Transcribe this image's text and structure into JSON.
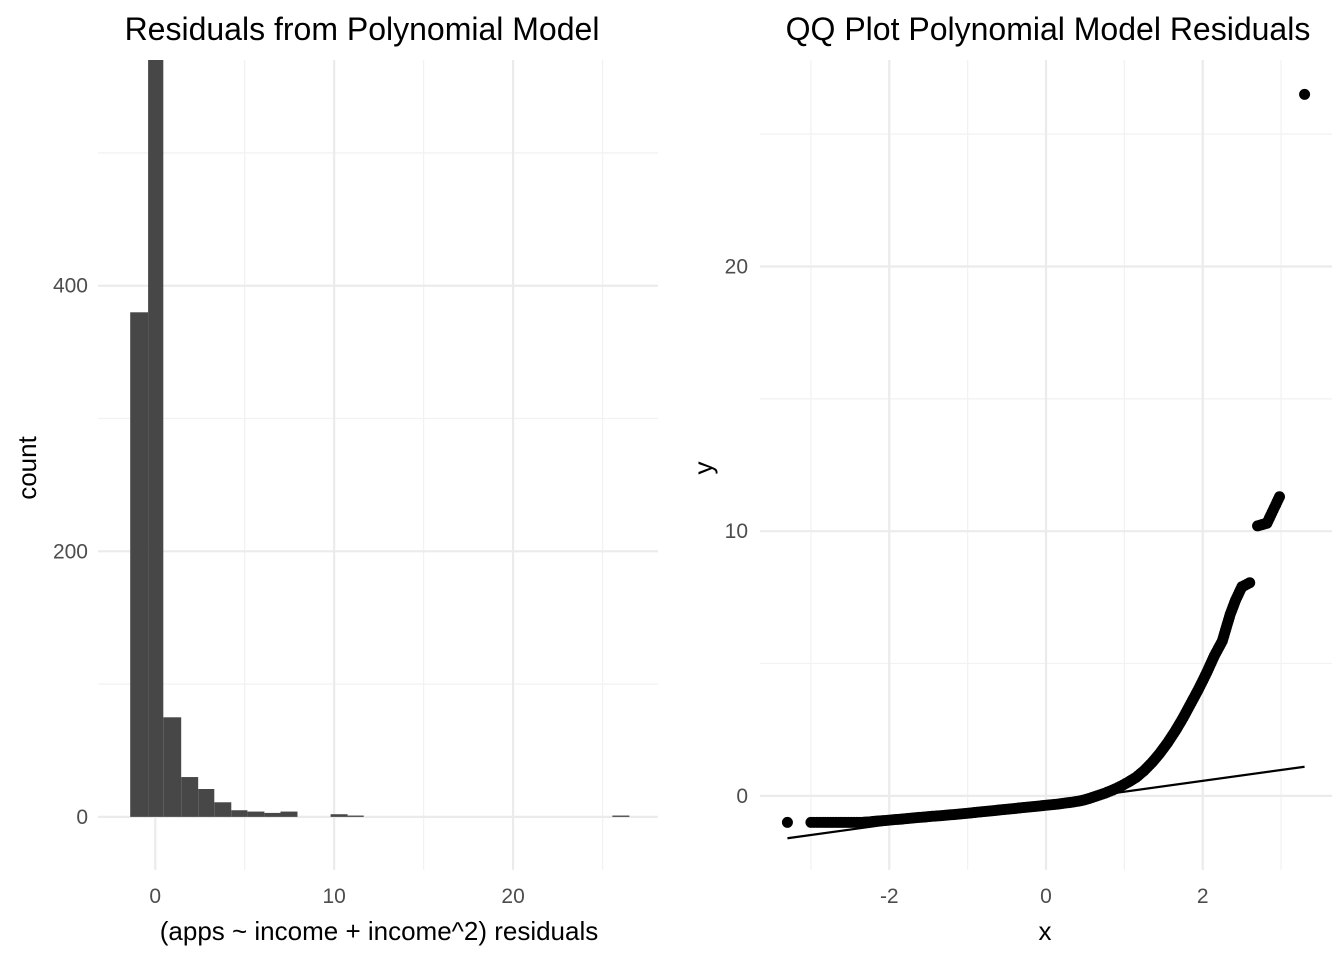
{
  "chart_data": [
    {
      "type": "bar",
      "title": "Residuals from Polynomial Model",
      "xlabel": "(apps ~ income + income^2) residuals",
      "ylabel": "count",
      "xlim": [
        -3.2,
        28.1
      ],
      "ylim": [
        -40,
        570
      ],
      "x_ticks": [
        "0",
        "10",
        "20"
      ],
      "x_tick_values": [
        0,
        10,
        20
      ],
      "y_ticks": [
        "0",
        "200",
        "400"
      ],
      "y_tick_values": [
        0,
        200,
        400
      ],
      "bar_color": "#474747",
      "bins": [
        {
          "x0": -1.4,
          "x1": -0.4,
          "count": 380
        },
        {
          "x0": -0.4,
          "x1": 0.45,
          "count": 570
        },
        {
          "x0": 0.45,
          "x1": 1.45,
          "count": 75
        },
        {
          "x0": 1.45,
          "x1": 2.4,
          "count": 30
        },
        {
          "x0": 2.4,
          "x1": 3.3,
          "count": 21
        },
        {
          "x0": 3.3,
          "x1": 4.25,
          "count": 11
        },
        {
          "x0": 4.25,
          "x1": 5.15,
          "count": 5
        },
        {
          "x0": 5.15,
          "x1": 6.1,
          "count": 4
        },
        {
          "x0": 6.1,
          "x1": 7.0,
          "count": 3
        },
        {
          "x0": 7.0,
          "x1": 7.95,
          "count": 4
        },
        {
          "x0": 7.95,
          "x1": 8.85,
          "count": 0
        },
        {
          "x0": 8.85,
          "x1": 9.8,
          "count": 0
        },
        {
          "x0": 9.8,
          "x1": 10.75,
          "count": 2
        },
        {
          "x0": 10.75,
          "x1": 11.65,
          "count": 1
        },
        {
          "x0": 11.65,
          "x1": 12.6,
          "count": 0
        },
        {
          "x0": 25.55,
          "x1": 26.5,
          "count": 1
        }
      ]
    },
    {
      "type": "scatter",
      "title": "QQ Plot Polynomial Model Residuals",
      "xlabel": "x",
      "ylabel": "y",
      "xlim": [
        -3.65,
        3.65
      ],
      "ylim": [
        -2.8,
        27.8
      ],
      "x_ticks": [
        "-2",
        "0",
        "2"
      ],
      "x_tick_values": [
        -2,
        0,
        2
      ],
      "y_ticks": [
        "0",
        "10",
        "20"
      ],
      "y_tick_values": [
        0,
        10,
        20
      ],
      "point_color": "#000000",
      "line_color": "#000000",
      "qq_line": [
        [
          -3.3,
          -1.6
        ],
        [
          3.3,
          1.1
        ]
      ],
      "points": [
        [
          -3.3,
          -1.0
        ],
        [
          -3.0,
          -1.0
        ],
        [
          -2.85,
          -1.0
        ],
        [
          -2.75,
          -1.0
        ],
        [
          -2.65,
          -1.0
        ],
        [
          -2.55,
          -1.0
        ],
        [
          -2.45,
          -1.0
        ],
        [
          -2.35,
          -1.0
        ],
        [
          -2.25,
          -0.98
        ],
        [
          -2.15,
          -0.95
        ],
        [
          -2.05,
          -0.93
        ],
        [
          -1.95,
          -0.9
        ],
        [
          -1.85,
          -0.88
        ],
        [
          -1.75,
          -0.85
        ],
        [
          -1.65,
          -0.82
        ],
        [
          -1.55,
          -0.8
        ],
        [
          -1.45,
          -0.77
        ],
        [
          -1.35,
          -0.75
        ],
        [
          -1.25,
          -0.72
        ],
        [
          -1.15,
          -0.7
        ],
        [
          -1.05,
          -0.67
        ],
        [
          -0.95,
          -0.64
        ],
        [
          -0.85,
          -0.61
        ],
        [
          -0.75,
          -0.58
        ],
        [
          -0.65,
          -0.55
        ],
        [
          -0.55,
          -0.52
        ],
        [
          -0.45,
          -0.49
        ],
        [
          -0.35,
          -0.46
        ],
        [
          -0.25,
          -0.43
        ],
        [
          -0.15,
          -0.4
        ],
        [
          -0.05,
          -0.37
        ],
        [
          0.05,
          -0.34
        ],
        [
          0.15,
          -0.31
        ],
        [
          0.25,
          -0.27
        ],
        [
          0.35,
          -0.23
        ],
        [
          0.45,
          -0.18
        ],
        [
          0.55,
          -0.1
        ],
        [
          0.65,
          0.0
        ],
        [
          0.75,
          0.1
        ],
        [
          0.85,
          0.22
        ],
        [
          0.95,
          0.36
        ],
        [
          1.05,
          0.52
        ],
        [
          1.15,
          0.7
        ],
        [
          1.25,
          0.95
        ],
        [
          1.35,
          1.25
        ],
        [
          1.45,
          1.6
        ],
        [
          1.55,
          2.0
        ],
        [
          1.65,
          2.45
        ],
        [
          1.75,
          2.95
        ],
        [
          1.85,
          3.5
        ],
        [
          1.95,
          4.05
        ],
        [
          2.05,
          4.65
        ],
        [
          2.15,
          5.3
        ],
        [
          2.25,
          5.85
        ],
        [
          2.35,
          6.85
        ],
        [
          2.42,
          7.4
        ],
        [
          2.5,
          7.9
        ],
        [
          2.6,
          8.05
        ],
        [
          2.7,
          10.2
        ],
        [
          2.82,
          10.3
        ],
        [
          2.98,
          11.3
        ],
        [
          3.3,
          26.5
        ]
      ]
    }
  ]
}
